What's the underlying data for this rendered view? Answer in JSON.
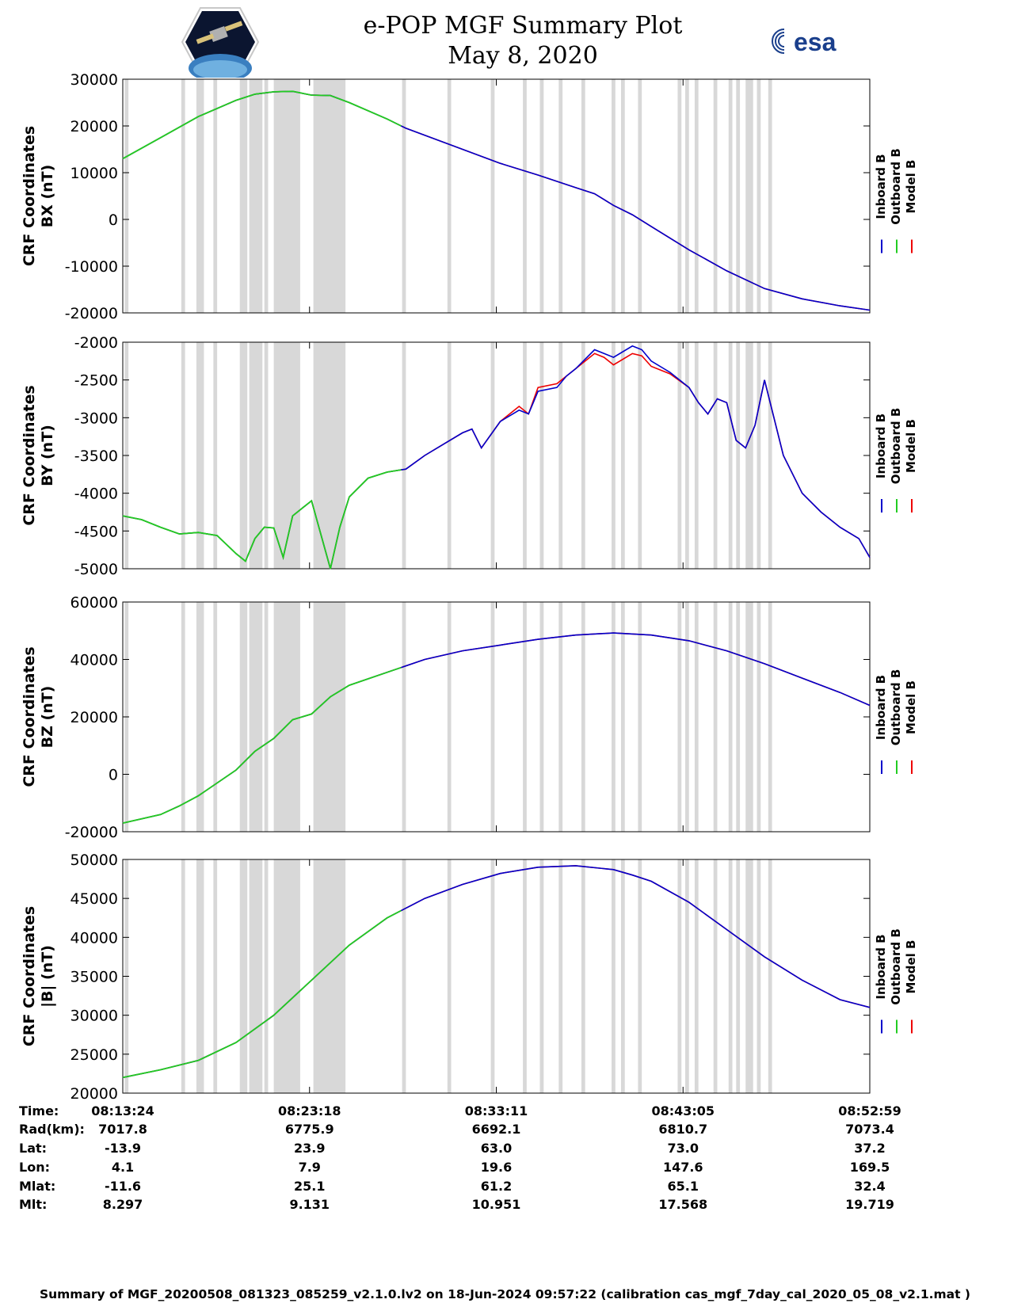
{
  "title": "e-POP MGF Summary Plot",
  "subtitle": "May 8, 2020",
  "logos": {
    "left": "cassiope-logo",
    "right": "esa-logo",
    "right_text": "esa"
  },
  "colors": {
    "inboard": "#0000cc",
    "outboard": "#22cc22",
    "model": "#ee0000",
    "shade": "#d8d8d8"
  },
  "legend": [
    "Inboard B",
    "Outboard B",
    "Model B"
  ],
  "chart_data": {
    "type": "line",
    "x_ticks": [
      "08:13:24",
      "08:23:18",
      "08:33:11",
      "08:43:05",
      "08:52:59"
    ],
    "x_range_min": [
      0,
      39.58
    ],
    "outboard_until_min": 14.75,
    "shaded_intervals_min": [
      [
        0.1,
        0.3
      ],
      [
        3.1,
        3.3
      ],
      [
        3.9,
        4.3
      ],
      [
        4.8,
        5.0
      ],
      [
        6.2,
        6.6
      ],
      [
        6.7,
        7.4
      ],
      [
        7.5,
        7.7
      ],
      [
        8.0,
        9.4
      ],
      [
        10.1,
        11.8
      ],
      [
        14.8,
        15.0
      ],
      [
        17.2,
        17.4
      ],
      [
        19.5,
        19.7
      ],
      [
        21.2,
        21.4
      ],
      [
        22.1,
        22.3
      ],
      [
        23.1,
        23.3
      ],
      [
        24.3,
        24.5
      ],
      [
        25.9,
        26.1
      ],
      [
        26.4,
        26.6
      ],
      [
        27.3,
        27.5
      ],
      [
        29.4,
        29.6
      ],
      [
        29.8,
        30.0
      ],
      [
        30.3,
        30.5
      ],
      [
        31.3,
        31.5
      ],
      [
        32.1,
        32.3
      ],
      [
        32.5,
        32.7
      ],
      [
        33.0,
        33.4
      ],
      [
        33.6,
        33.8
      ],
      [
        34.2,
        34.4
      ]
    ],
    "panels": [
      {
        "ylabel_1": "CRF Coordinates",
        "ylabel_2": "BX (nT)",
        "ylim": [
          -20000,
          30000
        ],
        "yticks": [
          -20000,
          -10000,
          0,
          10000,
          20000,
          30000
        ],
        "x": [
          0,
          2,
          4,
          6,
          7,
          8,
          9,
          10,
          11,
          12,
          14,
          15,
          18,
          20,
          22,
          24,
          25,
          26,
          27,
          28,
          30,
          32,
          34,
          36,
          38,
          39.58
        ],
        "inboard": [
          13000,
          17500,
          22000,
          25500,
          26800,
          27300,
          27400,
          26600,
          26500,
          25000,
          21500,
          19500,
          15000,
          12000,
          9500,
          6800,
          5500,
          3000,
          1000,
          -1500,
          -6500,
          -11000,
          -14800,
          -17000,
          -18500,
          -19400
        ],
        "model": [
          13000,
          17500,
          22000,
          25500,
          26800,
          27300,
          27400,
          26600,
          26500,
          25000,
          21500,
          19500,
          15000,
          12000,
          9500,
          6800,
          5500,
          3000,
          1000,
          -1500,
          -6500,
          -11000,
          -14800,
          -17000,
          -18500,
          -19400
        ]
      },
      {
        "ylabel_1": "CRF Coordinates",
        "ylabel_2": "BY (nT)",
        "ylim": [
          -5000,
          -2000
        ],
        "yticks": [
          -5000,
          -4500,
          -4000,
          -3500,
          -3000,
          -2500,
          -2000
        ],
        "x": [
          0,
          1,
          2,
          3,
          4,
          5,
          6,
          6.5,
          7,
          7.5,
          8,
          8.5,
          9,
          9.5,
          10,
          10.5,
          11,
          11.5,
          12,
          13,
          14,
          15,
          16,
          17,
          18,
          18.5,
          19,
          20,
          21,
          21.5,
          22,
          23,
          23.5,
          24,
          25,
          25.5,
          26,
          27,
          27.5,
          28,
          29,
          30,
          30.5,
          31,
          31.5,
          32,
          32.5,
          33,
          33.5,
          34,
          35,
          36,
          37,
          38,
          39,
          39.58
        ],
        "inboard": [
          -4300,
          -4350,
          -4450,
          -4540,
          -4520,
          -4560,
          -4800,
          -4900,
          -4600,
          -4450,
          -4460,
          -4850,
          -4300,
          -4200,
          -4100,
          -4550,
          -5000,
          -4450,
          -4050,
          -3800,
          -3720,
          -3680,
          -3500,
          -3350,
          -3200,
          -3150,
          -3400,
          -3050,
          -2900,
          -2950,
          -2650,
          -2600,
          -2450,
          -2350,
          -2100,
          -2150,
          -2200,
          -2050,
          -2100,
          -2250,
          -2400,
          -2600,
          -2800,
          -2950,
          -2750,
          -2800,
          -3300,
          -3400,
          -3100,
          -2500,
          -3500,
          -4000,
          -4250,
          -4450,
          -4600,
          -4850
        ],
        "model": [
          -4300,
          -4350,
          -4450,
          -4540,
          -4520,
          -4560,
          -4800,
          -4900,
          -4600,
          -4450,
          -4460,
          -4850,
          -4300,
          -4200,
          -4100,
          -4550,
          -5000,
          -4450,
          -4050,
          -3800,
          -3720,
          -3680,
          -3500,
          -3350,
          -3200,
          -3150,
          -3400,
          -3050,
          -2850,
          -2950,
          -2600,
          -2550,
          -2450,
          -2350,
          -2150,
          -2200,
          -2300,
          -2150,
          -2180,
          -2320,
          -2420,
          -2600,
          -2800,
          -2950,
          -2750,
          -2800,
          -3300,
          -3400,
          -3100,
          -2500,
          -3500,
          -4000,
          -4250,
          -4450,
          -4600,
          -4850
        ]
      },
      {
        "ylabel_1": "CRF Coordinates",
        "ylabel_2": "BZ (nT)",
        "ylim": [
          -20000,
          60000
        ],
        "yticks": [
          -20000,
          0,
          20000,
          40000,
          60000
        ],
        "x": [
          0,
          2,
          3,
          4,
          6,
          7,
          8,
          9,
          10,
          11,
          12,
          14,
          16,
          18,
          20,
          22,
          24,
          26,
          28,
          30,
          32,
          34,
          36,
          38,
          39.58
        ],
        "inboard": [
          -17000,
          -14000,
          -11000,
          -7500,
          1500,
          8000,
          12500,
          19000,
          21000,
          27000,
          31000,
          35500,
          40000,
          43000,
          45000,
          47000,
          48500,
          49200,
          48500,
          46500,
          43000,
          38500,
          33500,
          28500,
          24000
        ],
        "model": [
          -17000,
          -14000,
          -11000,
          -7500,
          1500,
          8000,
          12500,
          19000,
          21000,
          27000,
          31000,
          35500,
          40000,
          43000,
          45000,
          47000,
          48500,
          49200,
          48500,
          46500,
          43000,
          38500,
          33500,
          28500,
          24000
        ]
      },
      {
        "ylabel_1": "CRF Coordinates",
        "ylabel_2": "|B| (nT)",
        "ylim": [
          20000,
          50000
        ],
        "yticks": [
          20000,
          25000,
          30000,
          35000,
          40000,
          45000,
          50000
        ],
        "x": [
          0,
          2,
          4,
          6,
          8,
          10,
          12,
          14,
          16,
          18,
          20,
          22,
          24,
          26,
          27,
          28,
          30,
          32,
          34,
          36,
          38,
          39.58
        ],
        "inboard": [
          22000,
          23000,
          24200,
          26500,
          30000,
          34500,
          39000,
          42500,
          45000,
          46800,
          48200,
          49000,
          49200,
          48700,
          48000,
          47200,
          44500,
          41000,
          37500,
          34500,
          32000,
          31000
        ],
        "model": [
          22000,
          23000,
          24200,
          26500,
          30000,
          34500,
          39000,
          42500,
          45000,
          46800,
          48200,
          49000,
          49200,
          48700,
          48000,
          47200,
          44500,
          41000,
          37500,
          34500,
          32000,
          31000
        ]
      }
    ]
  },
  "info_table": {
    "labels": [
      "Time:",
      "Rad(km):",
      "Lat:",
      "Lon:",
      "Mlat:",
      "Mlt:"
    ],
    "rows": [
      [
        "08:13:24",
        "08:23:18",
        "08:33:11",
        "08:43:05",
        "08:52:59"
      ],
      [
        "7017.8",
        "6775.9",
        "6692.1",
        "6810.7",
        "7073.4"
      ],
      [
        "-13.9",
        "23.9",
        "63.0",
        "73.0",
        "37.2"
      ],
      [
        "4.1",
        "7.9",
        "19.6",
        "147.6",
        "169.5"
      ],
      [
        "-11.6",
        "25.1",
        "61.2",
        "65.1",
        "32.4"
      ],
      [
        "8.297",
        "9.131",
        "10.951",
        "17.568",
        "19.719"
      ]
    ]
  },
  "footer": "Summary of MGF_20200508_081323_085259_v2.1.0.lv2 on 18-Jun-2024 09:57:22 (calibration cas_mgf_7day_cal_2020_05_08_v2.1.mat )"
}
